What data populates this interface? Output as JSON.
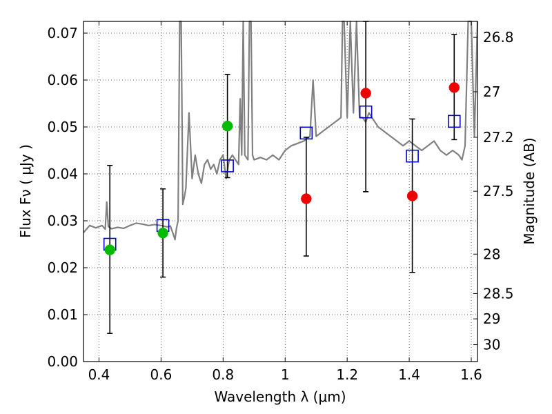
{
  "chart_data": {
    "type": "scatter",
    "xlabel": "Wavelength  λ (μm)",
    "ylabel": "Flux  Fν  ( μJy )",
    "y2label": "Magnitude (AB)",
    "xlim": [
      0.35,
      1.62
    ],
    "ylim": [
      0.0,
      0.0725
    ],
    "x_ticks": [
      0.4,
      0.6,
      0.8,
      1.0,
      1.2,
      1.4,
      1.6
    ],
    "x_tick_labels": [
      "0.4",
      "0.6",
      "0.8",
      "1",
      "1.2",
      "1.4",
      "1.6"
    ],
    "y_ticks": [
      0.0,
      0.01,
      0.02,
      0.03,
      0.04,
      0.05,
      0.06,
      0.07
    ],
    "y_tick_labels": [
      "0.00",
      "0.01",
      "0.02",
      "0.03",
      "0.04",
      "0.05",
      "0.06",
      "0.07"
    ],
    "y2_ticks": [
      {
        "label": "26.8",
        "flux": 0.0691
      },
      {
        "label": "27",
        "flux": 0.0575
      },
      {
        "label": "27.2",
        "flux": 0.0478
      },
      {
        "label": "27.5",
        "flux": 0.0363
      },
      {
        "label": "28",
        "flux": 0.0229
      },
      {
        "label": "28.5",
        "flux": 0.0145
      },
      {
        "label": "29",
        "flux": 0.0091
      },
      {
        "label": "30",
        "flux": 0.0036
      }
    ],
    "grid": true,
    "series": [
      {
        "kind": "spectrum",
        "color": "#808080",
        "x": [
          0.35,
          0.37,
          0.39,
          0.41,
          0.42,
          0.425,
          0.43,
          0.44,
          0.46,
          0.48,
          0.5,
          0.52,
          0.54,
          0.56,
          0.58,
          0.6,
          0.62,
          0.63,
          0.64,
          0.645,
          0.65,
          0.655,
          0.66,
          0.665,
          0.67,
          0.675,
          0.68,
          0.69,
          0.7,
          0.71,
          0.72,
          0.73,
          0.74,
          0.75,
          0.76,
          0.77,
          0.78,
          0.79,
          0.8,
          0.81,
          0.82,
          0.83,
          0.84,
          0.85,
          0.855,
          0.86,
          0.865,
          0.87,
          0.88,
          0.885,
          0.89,
          0.895,
          0.9,
          0.92,
          0.94,
          0.96,
          0.98,
          1.0,
          1.02,
          1.04,
          1.06,
          1.08,
          1.09,
          1.1,
          1.12,
          1.14,
          1.16,
          1.18,
          1.185,
          1.19,
          1.2,
          1.21,
          1.22,
          1.23,
          1.24,
          1.25,
          1.26,
          1.27,
          1.28,
          1.29,
          1.3,
          1.32,
          1.34,
          1.36,
          1.38,
          1.4,
          1.42,
          1.44,
          1.46,
          1.48,
          1.5,
          1.52,
          1.54,
          1.56,
          1.57,
          1.58,
          1.59,
          1.6,
          1.61,
          1.62
        ],
        "y": [
          0.0275,
          0.029,
          0.0285,
          0.029,
          0.0282,
          0.034,
          0.0288,
          0.0283,
          0.0286,
          0.0284,
          0.029,
          0.0295,
          0.0293,
          0.029,
          0.0292,
          0.029,
          0.0287,
          0.0289,
          0.027,
          0.026,
          0.0285,
          0.03,
          0.0725,
          0.0725,
          0.0335,
          0.035,
          0.037,
          0.053,
          0.039,
          0.044,
          0.04,
          0.038,
          0.042,
          0.043,
          0.041,
          0.042,
          0.04,
          0.043,
          0.044,
          0.039,
          0.043,
          0.044,
          0.043,
          0.042,
          0.056,
          0.044,
          0.0725,
          0.044,
          0.043,
          0.0725,
          0.0725,
          0.044,
          0.043,
          0.0435,
          0.043,
          0.044,
          0.043,
          0.045,
          0.046,
          0.0465,
          0.047,
          0.048,
          0.06,
          0.048,
          0.049,
          0.05,
          0.051,
          0.052,
          0.0725,
          0.0725,
          0.052,
          0.0725,
          0.053,
          0.0725,
          0.052,
          0.052,
          0.051,
          0.053,
          0.052,
          0.051,
          0.05,
          0.049,
          0.048,
          0.047,
          0.046,
          0.047,
          0.046,
          0.045,
          0.046,
          0.047,
          0.045,
          0.044,
          0.045,
          0.044,
          0.043,
          0.046,
          0.0725,
          0.0725,
          0.048,
          0.0725
        ]
      },
      {
        "kind": "model-points",
        "marker": "open-square",
        "color": "#0000cc",
        "points": [
          {
            "x": 0.435,
            "y": 0.025
          },
          {
            "x": 0.606,
            "y": 0.029
          },
          {
            "x": 0.814,
            "y": 0.0417
          },
          {
            "x": 1.068,
            "y": 0.0487
          },
          {
            "x": 1.26,
            "y": 0.0532
          },
          {
            "x": 1.41,
            "y": 0.0438
          },
          {
            "x": 1.545,
            "y": 0.0512
          }
        ]
      },
      {
        "kind": "detections",
        "marker": "filled-circle",
        "color": "#00bb00",
        "points": [
          {
            "x": 0.435,
            "y": 0.0238
          },
          {
            "x": 0.606,
            "y": 0.0274
          },
          {
            "x": 0.814,
            "y": 0.0502
          }
        ]
      },
      {
        "kind": "detections",
        "marker": "filled-circle",
        "color": "#ee0000",
        "points": [
          {
            "x": 1.068,
            "y": 0.0347
          },
          {
            "x": 1.26,
            "y": 0.0572
          },
          {
            "x": 1.41,
            "y": 0.0353
          },
          {
            "x": 1.545,
            "y": 0.0584
          }
        ]
      },
      {
        "kind": "errorbars",
        "color": "#000000",
        "bars": [
          {
            "x": 0.435,
            "low": 0.006,
            "high": 0.0418
          },
          {
            "x": 0.606,
            "low": 0.018,
            "high": 0.0368
          },
          {
            "x": 0.814,
            "low": 0.0392,
            "high": 0.0612
          },
          {
            "x": 1.068,
            "low": 0.0225,
            "high": 0.0478
          },
          {
            "x": 1.26,
            "low": 0.0362,
            "high": 0.0725
          },
          {
            "x": 1.41,
            "low": 0.019,
            "high": 0.0517
          },
          {
            "x": 1.545,
            "low": 0.0473,
            "high": 0.0697
          }
        ]
      }
    ]
  }
}
